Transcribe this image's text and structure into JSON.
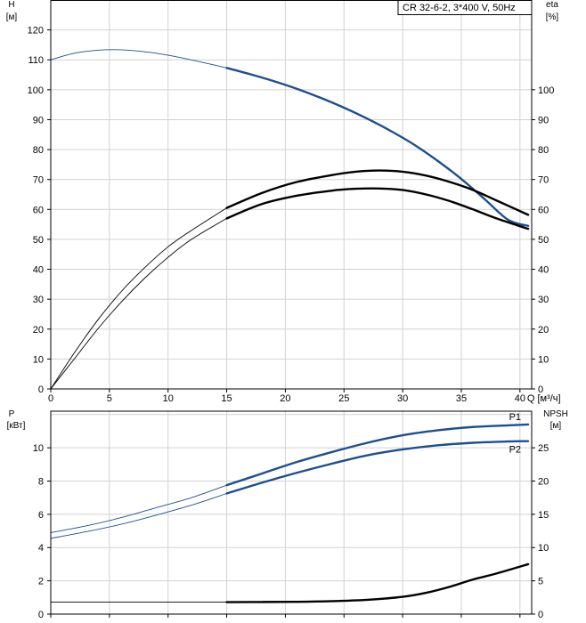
{
  "title": "CR 32-6-2, 3*400 V, 50Hz",
  "chart_data": [
    {
      "id": "head-efficiency",
      "type": "line",
      "left_axis_label_1": "H",
      "left_axis_label_2": "[м]",
      "right_axis_label_1": "eta",
      "right_axis_label_2": "[%]",
      "x_axis_label": "Q [м³/ч]",
      "xlim": [
        0,
        41
      ],
      "ylim_left": [
        0,
        130
      ],
      "ylim_right": [
        0,
        130
      ],
      "x_ticks": [
        "0",
        "5",
        "10",
        "15",
        "20",
        "25",
        "30",
        "35",
        "40"
      ],
      "y_left_ticks": [
        "0",
        "10",
        "20",
        "30",
        "40",
        "50",
        "60",
        "70",
        "80",
        "90",
        "100",
        "110",
        "120"
      ],
      "y_right_ticks": [
        "0",
        "10",
        "20",
        "30",
        "40",
        "50",
        "60",
        "70",
        "80",
        "90",
        "100"
      ],
      "series": [
        {
          "role": "head",
          "axis": "left",
          "color": "#1f4e8c",
          "thin_range": [
            0,
            15
          ],
          "x": [
            0,
            2,
            4,
            5.5,
            7,
            9,
            11,
            13,
            15,
            17,
            19,
            21,
            23,
            25,
            27,
            29,
            31,
            33,
            35,
            37,
            39,
            40.7
          ],
          "y": [
            110,
            112.2,
            113.2,
            113.4,
            113.1,
            112.2,
            110.8,
            109.1,
            107.3,
            105.2,
            102.9,
            100.3,
            97.3,
            94,
            90.3,
            86.2,
            81.6,
            76.2,
            70.2,
            63.4,
            56.5,
            54.5
          ]
        },
        {
          "role": "efficiency-upper",
          "axis": "right",
          "color": "#000000",
          "thin_range": [
            0,
            15
          ],
          "x": [
            0,
            2,
            4,
            6,
            8,
            10,
            12,
            15,
            18,
            21,
            24,
            26,
            28,
            30,
            32,
            34,
            36,
            38,
            40.7
          ],
          "y": [
            0,
            12,
            23,
            32.5,
            40.5,
            47.5,
            53,
            60.5,
            65.5,
            69.2,
            71.5,
            72.6,
            73,
            72.6,
            71.3,
            69.2,
            66.5,
            63,
            58.2
          ]
        },
        {
          "role": "efficiency-lower",
          "axis": "right",
          "color": "#000000",
          "thin_range": [
            0,
            15
          ],
          "x": [
            0,
            2,
            4,
            6,
            8,
            10,
            12,
            15,
            18,
            21,
            24,
            26,
            28,
            30,
            32,
            34,
            36,
            38,
            40.7
          ],
          "y": [
            0,
            10,
            20,
            29,
            37,
            44,
            50,
            57,
            61.8,
            64.6,
            66.3,
            66.9,
            67,
            66.5,
            65,
            62.8,
            60,
            57,
            53.5
          ]
        }
      ]
    },
    {
      "id": "power-npsh",
      "type": "line",
      "left_axis_label_1": "P",
      "left_axis_label_2": "[кВт]",
      "right_axis_label_1": "NPSH",
      "right_axis_label_2": "[м]",
      "xlim": [
        0,
        41
      ],
      "ylim_left": [
        0,
        12.2
      ],
      "ylim_right": [
        0,
        30.5
      ],
      "y_left_ticks": [
        "0",
        "2",
        "4",
        "6",
        "8",
        "10"
      ],
      "y_right_ticks": [
        "0",
        "5",
        "10",
        "15",
        "20",
        "25"
      ],
      "series": [
        {
          "name": "P1",
          "axis": "left",
          "color": "#1f4e8c",
          "thin_range": [
            0,
            15
          ],
          "x": [
            0,
            3,
            6,
            9,
            12,
            15,
            18,
            21,
            24,
            27,
            30,
            33,
            36,
            39,
            40.7
          ],
          "y": [
            4.9,
            5.3,
            5.8,
            6.4,
            7,
            7.75,
            8.45,
            9.15,
            9.75,
            10.3,
            10.75,
            11.05,
            11.25,
            11.35,
            11.4
          ]
        },
        {
          "name": "P2",
          "axis": "left",
          "color": "#1f4e8c",
          "thin_range": [
            0,
            15
          ],
          "x": [
            0,
            3,
            6,
            9,
            12,
            15,
            18,
            21,
            24,
            27,
            30,
            33,
            36,
            39,
            40.7
          ],
          "y": [
            4.55,
            4.95,
            5.4,
            5.95,
            6.55,
            7.25,
            7.9,
            8.5,
            9.05,
            9.55,
            9.9,
            10.15,
            10.3,
            10.38,
            10.4
          ]
        },
        {
          "name": "NPSH",
          "axis": "right",
          "color": "#000000",
          "thin_range": [
            0,
            15
          ],
          "x": [
            0,
            15,
            18,
            21,
            24,
            27,
            30,
            32,
            34,
            36,
            38,
            40.7
          ],
          "y": [
            1.8,
            1.8,
            1.82,
            1.85,
            1.95,
            2.15,
            2.6,
            3.2,
            4.1,
            5.2,
            6.1,
            7.5
          ]
        }
      ]
    }
  ]
}
